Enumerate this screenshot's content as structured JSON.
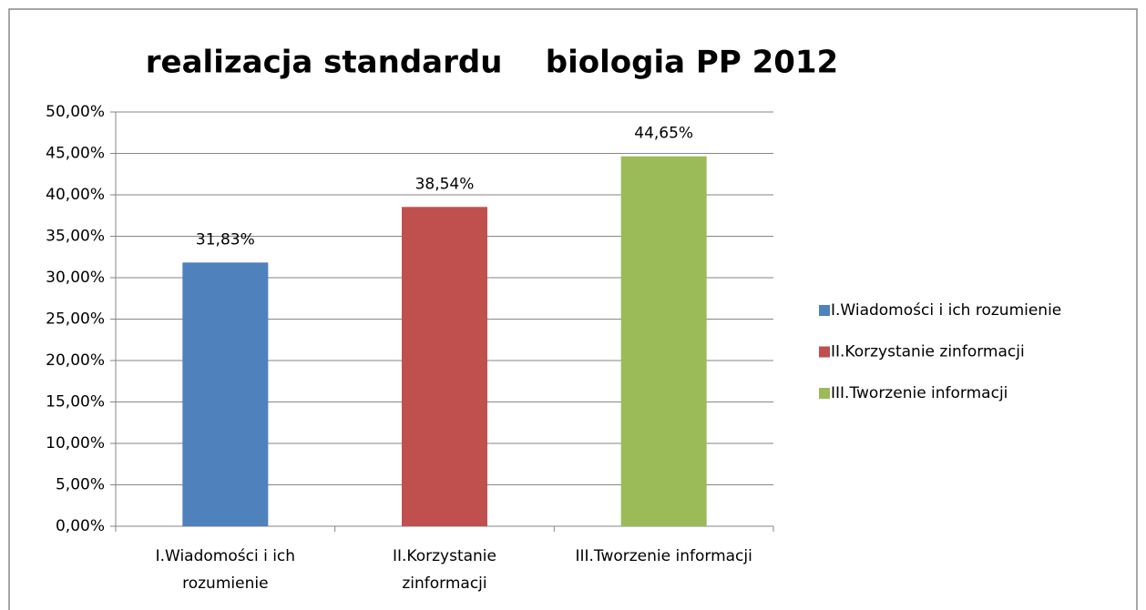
{
  "chart_data": {
    "type": "bar",
    "title": "realizacja standardu    biologia PP 2012",
    "categories": [
      "I.Wiadomości i ich rozumienie",
      "II.Korzystanie zinformacji",
      "III.Tworzenie informacji"
    ],
    "values": [
      31.83,
      38.54,
      44.65
    ],
    "value_labels": [
      "31,83%",
      "38,54%",
      "44,65%"
    ],
    "colors": [
      "#4f81bd",
      "#c0504d",
      "#9bbb59"
    ],
    "ylim": [
      0,
      50
    ],
    "yticks": [
      {
        "value": 0,
        "label": "0,00%"
      },
      {
        "value": 5,
        "label": "5,00%"
      },
      {
        "value": 10,
        "label": "10,00%"
      },
      {
        "value": 15,
        "label": "15,00%"
      },
      {
        "value": 20,
        "label": "20,00%"
      },
      {
        "value": 25,
        "label": "25,00%"
      },
      {
        "value": 30,
        "label": "30,00%"
      },
      {
        "value": 35,
        "label": "35,00%"
      },
      {
        "value": 40,
        "label": "40,00%"
      },
      {
        "value": 45,
        "label": "45,00%"
      },
      {
        "value": 50,
        "label": "50,00%"
      }
    ],
    "grid": true,
    "legend": "right"
  }
}
